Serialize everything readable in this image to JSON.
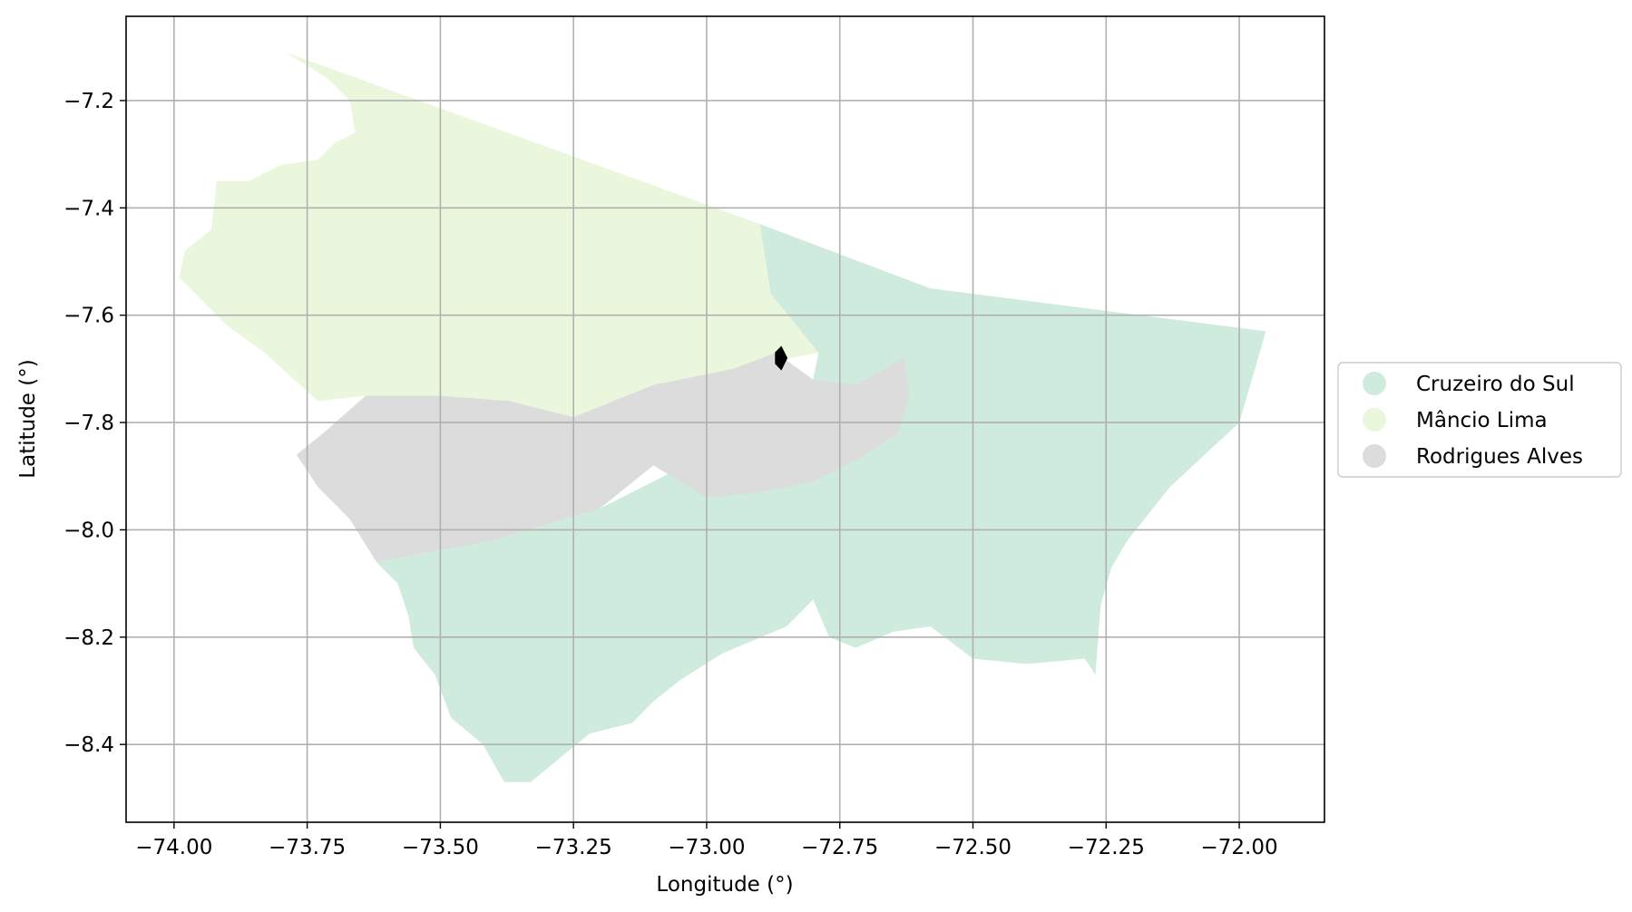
{
  "chart_data": {
    "type": "map",
    "title": "",
    "xlabel": "Longitude (°)",
    "ylabel": "Latitude (°)",
    "xlim": [
      -74.09,
      -71.84
    ],
    "ylim": [
      -8.545,
      -7.043
    ],
    "grid": true,
    "legend_position": "right",
    "x_ticks": [
      -74.0,
      -73.75,
      -73.5,
      -73.25,
      -73.0,
      -72.75,
      -72.5,
      -72.25,
      -72.0
    ],
    "x_tick_labels": [
      "−74.00",
      "−73.75",
      "−73.50",
      "−73.25",
      "−73.00",
      "−72.75",
      "−72.50",
      "−72.25",
      "−72.00"
    ],
    "y_ticks": [
      -7.2,
      -7.4,
      -7.6,
      -7.8,
      -8.0,
      -8.2,
      -8.4
    ],
    "y_tick_labels": [
      "−7.2",
      "−7.4",
      "−7.6",
      "−7.8",
      "−8.0",
      "−8.2",
      "−8.4"
    ],
    "regions": [
      {
        "name": "Cruzeiro do Sul",
        "color": "#cfebdd",
        "polygons": [
          [
            [
              -72.9,
              -7.43
            ],
            [
              -72.58,
              -7.55
            ],
            [
              -71.95,
              -7.63
            ],
            [
              -72.0,
              -7.8
            ],
            [
              -72.13,
              -7.92
            ],
            [
              -72.21,
              -8.02
            ],
            [
              -72.24,
              -8.07
            ],
            [
              -72.26,
              -8.14
            ],
            [
              -72.27,
              -8.27
            ],
            [
              -72.29,
              -8.24
            ],
            [
              -72.4,
              -8.25
            ],
            [
              -72.5,
              -8.24
            ],
            [
              -72.58,
              -8.18
            ],
            [
              -72.65,
              -8.19
            ],
            [
              -72.72,
              -8.22
            ],
            [
              -72.77,
              -8.2
            ],
            [
              -72.8,
              -8.13
            ],
            [
              -72.85,
              -8.18
            ],
            [
              -72.97,
              -8.23
            ],
            [
              -73.05,
              -8.28
            ],
            [
              -73.1,
              -8.32
            ],
            [
              -73.14,
              -8.36
            ],
            [
              -73.22,
              -8.38
            ],
            [
              -73.33,
              -8.47
            ],
            [
              -73.38,
              -8.47
            ],
            [
              -73.42,
              -8.4
            ],
            [
              -73.48,
              -8.35
            ],
            [
              -73.51,
              -8.27
            ],
            [
              -73.55,
              -8.22
            ],
            [
              -73.56,
              -8.16
            ],
            [
              -73.58,
              -8.1
            ],
            [
              -73.62,
              -8.06
            ],
            [
              -73.4,
              -8.02
            ],
            [
              -73.2,
              -7.96
            ],
            [
              -73.0,
              -7.86
            ],
            [
              -72.87,
              -7.8
            ],
            [
              -72.8,
              -7.72
            ],
            [
              -72.79,
              -7.67
            ],
            [
              -72.88,
              -7.56
            ]
          ]
        ]
      },
      {
        "name": "Mâncio Lima",
        "color": "#ebf7dc",
        "polygons": [
          [
            [
              -73.79,
              -7.11
            ],
            [
              -72.9,
              -7.43
            ],
            [
              -72.88,
              -7.56
            ],
            [
              -72.79,
              -7.67
            ],
            [
              -72.95,
              -7.7
            ],
            [
              -73.1,
              -7.73
            ],
            [
              -73.25,
              -7.79
            ],
            [
              -73.37,
              -7.76
            ],
            [
              -73.5,
              -7.75
            ],
            [
              -73.64,
              -7.75
            ],
            [
              -73.73,
              -7.76
            ],
            [
              -73.83,
              -7.67
            ],
            [
              -73.9,
              -7.62
            ],
            [
              -73.95,
              -7.57
            ],
            [
              -73.99,
              -7.53
            ],
            [
              -73.98,
              -7.48
            ],
            [
              -73.93,
              -7.44
            ],
            [
              -73.92,
              -7.35
            ],
            [
              -73.86,
              -7.35
            ],
            [
              -73.8,
              -7.32
            ],
            [
              -73.73,
              -7.31
            ],
            [
              -73.7,
              -7.28
            ],
            [
              -73.66,
              -7.26
            ],
            [
              -73.67,
              -7.2
            ],
            [
              -73.71,
              -7.16
            ]
          ]
        ]
      },
      {
        "name": "Rodrigues Alves",
        "color": "#dcdcdc",
        "polygons": [
          [
            [
              -73.25,
              -7.79
            ],
            [
              -73.1,
              -7.73
            ],
            [
              -72.95,
              -7.7
            ],
            [
              -72.87,
              -7.67
            ],
            [
              -72.8,
              -7.72
            ],
            [
              -72.72,
              -7.73
            ],
            [
              -72.63,
              -7.68
            ],
            [
              -72.62,
              -7.75
            ],
            [
              -72.64,
              -7.82
            ],
            [
              -72.72,
              -7.87
            ],
            [
              -72.8,
              -7.91
            ],
            [
              -72.9,
              -7.93
            ],
            [
              -73.0,
              -7.94
            ],
            [
              -73.1,
              -7.88
            ],
            [
              -73.2,
              -7.96
            ],
            [
              -73.4,
              -8.02
            ],
            [
              -73.62,
              -8.06
            ],
            [
              -73.67,
              -7.98
            ],
            [
              -73.73,
              -7.92
            ],
            [
              -73.77,
              -7.86
            ],
            [
              -73.72,
              -7.82
            ],
            [
              -73.64,
              -7.75
            ],
            [
              -73.5,
              -7.75
            ],
            [
              -73.37,
              -7.76
            ]
          ]
        ]
      }
    ],
    "overlay": {
      "color": "#000000",
      "points": [
        [
          -72.87,
          -7.67
        ],
        [
          -72.86,
          -7.66
        ],
        [
          -72.85,
          -7.68
        ],
        [
          -72.86,
          -7.7
        ],
        [
          -72.87,
          -7.69
        ]
      ]
    },
    "legend": [
      {
        "label": "Cruzeiro do Sul",
        "color": "#cfebdd"
      },
      {
        "label": "Mâncio Lima",
        "color": "#ebf7dc"
      },
      {
        "label": "Rodrigues Alves",
        "color": "#dcdcdc"
      }
    ]
  }
}
